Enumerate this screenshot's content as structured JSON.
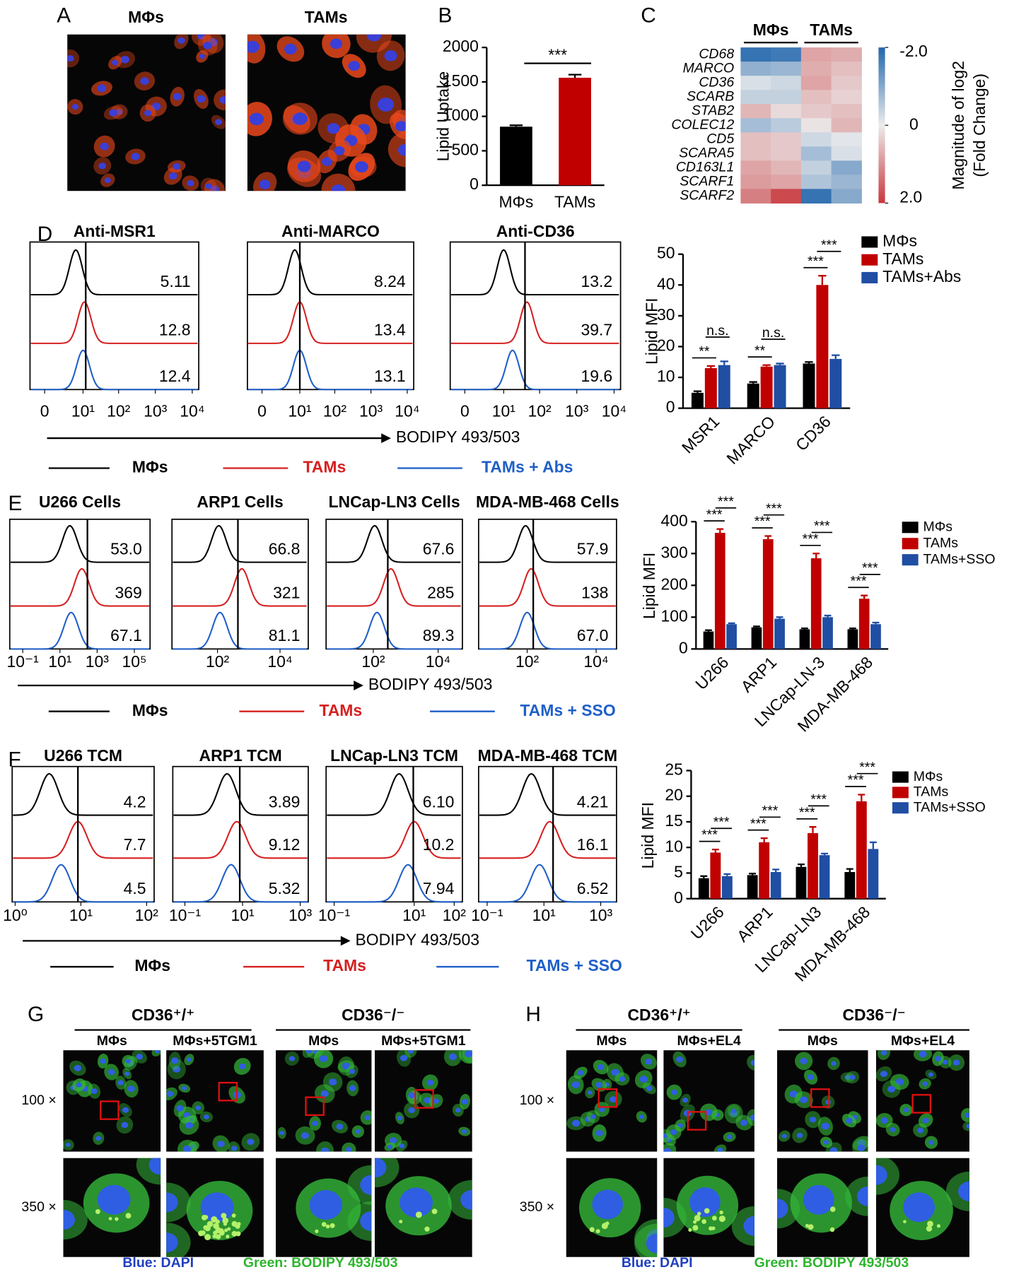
{
  "panel_labels": [
    "A",
    "B",
    "C",
    "D",
    "E",
    "F",
    "G",
    "H"
  ],
  "panel_a": {
    "labels": [
      "MΦs",
      "TAMs"
    ]
  },
  "chart_data": [
    {
      "type": "bar",
      "ylabel": "Lipid Uptake",
      "categories": [
        "MΦs",
        "TAMs"
      ],
      "values": [
        850,
        1560
      ],
      "errors": [
        20,
        45
      ],
      "colors": [
        "#000000",
        "#c00000"
      ],
      "ylim": [
        0,
        2000
      ],
      "yticks": [
        0,
        500,
        1000,
        1500,
        2000
      ],
      "annotation": "***"
    },
    {
      "type": "heatmap",
      "groups": [
        "MΦs",
        "TAMs"
      ],
      "rows": [
        "CD68",
        "MARCO",
        "CD36",
        "SCARB",
        "STAB2",
        "COLEC12",
        "CD5",
        "SCARA5",
        "CD163L1",
        "SCARF1",
        "SCARF2"
      ],
      "values": [
        [
          -1.8,
          -1.7,
          0.8,
          0.7
        ],
        [
          -0.9,
          -0.8,
          0.7,
          0.5
        ],
        [
          -0.2,
          -0.3,
          0.8,
          0.4
        ],
        [
          -0.4,
          -0.4,
          0.5,
          0.3
        ],
        [
          0.6,
          0.2,
          0.4,
          0.5
        ],
        [
          -0.7,
          -0.5,
          0.1,
          0.6
        ],
        [
          0.5,
          0.4,
          -0.3,
          -0.1
        ],
        [
          0.5,
          0.4,
          -0.7,
          -0.2
        ],
        [
          0.8,
          0.6,
          -0.4,
          -1.0
        ],
        [
          0.9,
          0.8,
          -0.6,
          -0.8
        ],
        [
          1.2,
          1.8,
          -1.8,
          -1.0
        ]
      ],
      "clim": [
        -2,
        2
      ],
      "colormap": [
        "#2166ac",
        "#ececec",
        "#c8373c"
      ],
      "colorbar_ticks": [
        {
          "value": -2,
          "label": "-2.0"
        },
        0,
        {
          "value": 2,
          "label": "2.0"
        }
      ],
      "colorbar_label": [
        "Magnitude of log2",
        "(Fold Change)"
      ]
    },
    {
      "type": "flow_histogram",
      "scale": "symlog",
      "xlabel": "BODIPY 493/503",
      "series": [
        {
          "name": "MΦs",
          "color": "#000000"
        },
        {
          "name": "TAMs",
          "color": "#d62020"
        },
        {
          "name": "TAMs + Abs",
          "color": "#1f5fc8"
        }
      ],
      "panels": [
        {
          "title": "Anti-MSR1",
          "xlim": [
            0,
            10000
          ],
          "xticks": [
            0,
            {
              "value": 10,
              "label": "10¹"
            },
            {
              "value": 100,
              "label": "10²"
            },
            {
              "value": 1000,
              "label": "10³"
            },
            {
              "value": 10000,
              "label": "10⁴"
            }
          ],
          "gate": 12,
          "peaks": [
            6,
            11,
            10
          ],
          "gate_labels": [
            "5.11",
            "12.8",
            "12.4"
          ]
        },
        {
          "title": "Anti-MARCO",
          "xlim": [
            0,
            10000
          ],
          "xticks": [
            0,
            {
              "value": 10,
              "label": "10¹"
            },
            {
              "value": 100,
              "label": "10²"
            },
            {
              "value": 1000,
              "label": "10³"
            },
            {
              "value": 10000,
              "label": "10⁴"
            }
          ],
          "gate": 10,
          "peaks": [
            7,
            10,
            10
          ],
          "gate_labels": [
            "8.24",
            "13.4",
            "13.1"
          ]
        },
        {
          "title": "Anti-CD36",
          "xlim": [
            0,
            10000
          ],
          "xticks": [
            0,
            {
              "value": 10,
              "label": "10¹"
            },
            {
              "value": 100,
              "label": "10²"
            },
            {
              "value": 1000,
              "label": "10³"
            },
            {
              "value": 10000,
              "label": "10⁴"
            }
          ],
          "gate": 40,
          "peaks": [
            10,
            45,
            18
          ],
          "gate_labels": [
            "13.2",
            "39.7",
            "19.6"
          ]
        }
      ]
    },
    {
      "type": "grouped_bar",
      "ylabel": "Lipid MFI",
      "categories": [
        "MSR1",
        "MARCO",
        "CD36"
      ],
      "series": [
        {
          "name": "MΦs",
          "color": "#000000",
          "values": [
            5,
            8,
            14.5
          ],
          "errors": [
            0.5,
            0.5,
            0.5
          ]
        },
        {
          "name": "TAMs",
          "color": "#c00000",
          "values": [
            13,
            13.5,
            40
          ],
          "errors": [
            0.7,
            0.5,
            3
          ]
        },
        {
          "name": "TAMs+Abs",
          "color": "#1f4ea3",
          "values": [
            14,
            14,
            16
          ],
          "errors": [
            1.2,
            0.5,
            1.2
          ]
        }
      ],
      "ylim": [
        0,
        50
      ],
      "yticks": [
        0,
        10,
        20,
        30,
        40,
        50
      ],
      "annotations": [
        [
          "**",
          "n.s."
        ],
        [
          "**",
          "n.s."
        ],
        [
          "***",
          "***"
        ]
      ]
    },
    {
      "type": "flow_histogram",
      "scale": "log",
      "xlabel": "BODIPY 493/503",
      "series": [
        {
          "name": "MΦs",
          "color": "#000000"
        },
        {
          "name": "TAMs",
          "color": "#d62020"
        },
        {
          "name": "TAMs + SSO",
          "color": "#1f5fc8"
        }
      ],
      "panels": [
        {
          "title": "U266 Cells",
          "xlim": [
            0.02,
            700000
          ],
          "xticks": [
            {
              "value": 0.1,
              "label": "10⁻¹"
            },
            {
              "value": 10,
              "label": "10¹"
            },
            {
              "value": 1000,
              "label": "10³"
            },
            {
              "value": 100000,
              "label": "10⁵"
            }
          ],
          "gate": 300,
          "peaks": [
            34,
            150,
            40
          ],
          "gate_labels": [
            "53.0",
            "369",
            "67.1"
          ]
        },
        {
          "title": "ARP1 Cells",
          "xlim": [
            3.5,
            80000
          ],
          "xticks": [
            {
              "value": 100,
              "label": "10²"
            },
            {
              "value": 10000,
              "label": "10⁴"
            }
          ],
          "gate": 450,
          "peaks": [
            110,
            600,
            120
          ],
          "gate_labels": [
            "66.8",
            "321",
            "81.1"
          ]
        },
        {
          "title": "LNCap-LN3 Cells",
          "xlim": [
            3.5,
            56000
          ],
          "xticks": [
            {
              "value": 100,
              "label": "10²"
            },
            {
              "value": 10000,
              "label": "10⁴"
            }
          ],
          "gate": 280,
          "peaks": [
            110,
            350,
            130
          ],
          "gate_labels": [
            "67.6",
            "285",
            "89.3"
          ]
        },
        {
          "title": "MDA-MB-468 Cells",
          "xlim": [
            3.9,
            39000
          ],
          "xticks": [
            {
              "value": 100,
              "label": "10²"
            },
            {
              "value": 10000,
              "label": "10⁴"
            }
          ],
          "gate": 150,
          "peaks": [
            90,
            130,
            100
          ],
          "gate_labels": [
            "57.9",
            "138",
            "67.0"
          ]
        }
      ]
    },
    {
      "type": "grouped_bar",
      "ylabel": "Lipid MFI",
      "categories": [
        "U266",
        "ARP1",
        "LNCap-LN-3",
        "MDA-MB-468"
      ],
      "series": [
        {
          "name": "MΦs",
          "color": "#000000",
          "values": [
            55,
            68,
            62,
            62
          ],
          "errors": [
            4,
            3,
            3,
            3
          ]
        },
        {
          "name": "TAMs",
          "color": "#c00000",
          "values": [
            365,
            345,
            285,
            158
          ],
          "errors": [
            12,
            10,
            15,
            10
          ]
        },
        {
          "name": "TAMs+SSO",
          "color": "#1f4ea3",
          "values": [
            78,
            95,
            100,
            78
          ],
          "errors": [
            3,
            5,
            5,
            5
          ]
        }
      ],
      "ylim": [
        0,
        400
      ],
      "yticks": [
        0,
        100,
        200,
        300,
        400
      ],
      "annotations": [
        [
          "***",
          "***"
        ],
        [
          "***",
          "***"
        ],
        [
          "***",
          "***"
        ],
        [
          "***",
          "***"
        ]
      ]
    },
    {
      "type": "flow_histogram",
      "scale": "log",
      "xlabel": "BODIPY 493/503",
      "series": [
        {
          "name": "MΦs",
          "color": "#000000"
        },
        {
          "name": "TAMs",
          "color": "#d62020"
        },
        {
          "name": "TAMs + SSO",
          "color": "#1f5fc8"
        }
      ],
      "panels": [
        {
          "title": "U266 TCM",
          "xlim": [
            0.9,
            130
          ],
          "xticks": [
            {
              "value": 1,
              "label": "10⁰"
            },
            {
              "value": 10,
              "label": "10¹"
            },
            {
              "value": 100,
              "label": "10²"
            }
          ],
          "gate": 9,
          "peaks": [
            3.3,
            9,
            5
          ],
          "gate_labels": [
            "4.2",
            "7.7",
            "4.5"
          ]
        },
        {
          "title": "ARP1 TCM",
          "xlim": [
            0.038,
            1900
          ],
          "xticks": [
            {
              "value": 0.1,
              "label": "10⁻¹"
            },
            {
              "value": 10,
              "label": "10¹"
            },
            {
              "value": 1000,
              "label": "10³"
            }
          ],
          "gate": 8,
          "peaks": [
            2.9,
            6.3,
            4
          ],
          "gate_labels": [
            "3.89",
            "9.12",
            "5.32"
          ]
        },
        {
          "title": "LNCap-LN3 TCM",
          "xlim": [
            0.063,
            160
          ],
          "xticks": [
            {
              "value": 0.1,
              "label": "10⁻¹"
            },
            {
              "value": 10,
              "label": "10¹"
            },
            {
              "value": 100,
              "label": "10²"
            }
          ],
          "gate": 9.5,
          "peaks": [
            4.2,
            10,
            7
          ],
          "gate_labels": [
            "6.10",
            "10.2",
            "7.94"
          ]
        },
        {
          "title": "MDA-MB-468 TCM",
          "xlim": [
            0.05,
            3600
          ],
          "xticks": [
            {
              "value": 0.1,
              "label": "10⁻¹"
            },
            {
              "value": 10,
              "label": "10¹"
            },
            {
              "value": 1000,
              "label": "10³"
            }
          ],
          "gate": 21,
          "peaks": [
            3.6,
            16,
            7
          ],
          "gate_labels": [
            "4.21",
            "16.1",
            "6.52"
          ]
        }
      ]
    },
    {
      "type": "grouped_bar",
      "ylabel": "Lipid MFI",
      "categories": [
        "U266",
        "ARP1",
        "LNCap-LN3",
        "MDA-MB-468"
      ],
      "series": [
        {
          "name": "MΦs",
          "color": "#000000",
          "values": [
            4,
            4.6,
            6.2,
            5.2
          ],
          "errors": [
            0.4,
            0.3,
            0.5,
            0.6
          ]
        },
        {
          "name": "TAMs",
          "color": "#c00000",
          "values": [
            9,
            11,
            12.8,
            19
          ],
          "errors": [
            0.6,
            0.8,
            1.2,
            1.3
          ]
        },
        {
          "name": "TAMs+SSO",
          "color": "#1f4ea3",
          "values": [
            4.4,
            5.2,
            8.5,
            9.7
          ],
          "errors": [
            0.4,
            0.5,
            0.3,
            1.3
          ]
        }
      ],
      "ylim": [
        0,
        25
      ],
      "yticks": [
        0,
        5,
        10,
        15,
        20,
        25
      ],
      "annotations": [
        [
          "***",
          "***"
        ],
        [
          "***",
          "***"
        ],
        [
          "***",
          "***"
        ],
        [
          "***",
          "***"
        ]
      ]
    }
  ],
  "panel_g": {
    "groups": [
      "CD36⁺/⁺",
      "CD36⁻/⁻"
    ],
    "columns": [
      "MΦs",
      "MΦs+5TGM1",
      "MΦs",
      "MΦs+5TGM1"
    ],
    "rows": [
      "100 ×",
      "350 ×"
    ],
    "legend": [
      "Blue: DAPI",
      "Green: BODIPY 493/503"
    ]
  },
  "panel_h": {
    "groups": [
      "CD36⁺/⁺",
      "CD36⁻/⁻"
    ],
    "columns": [
      "MΦs",
      "MΦs+EL4",
      "MΦs",
      "MΦs+EL4"
    ],
    "rows": [
      "100 ×",
      "350 ×"
    ],
    "legend": [
      "Blue: DAPI",
      "Green: BODIPY 493/503"
    ]
  }
}
